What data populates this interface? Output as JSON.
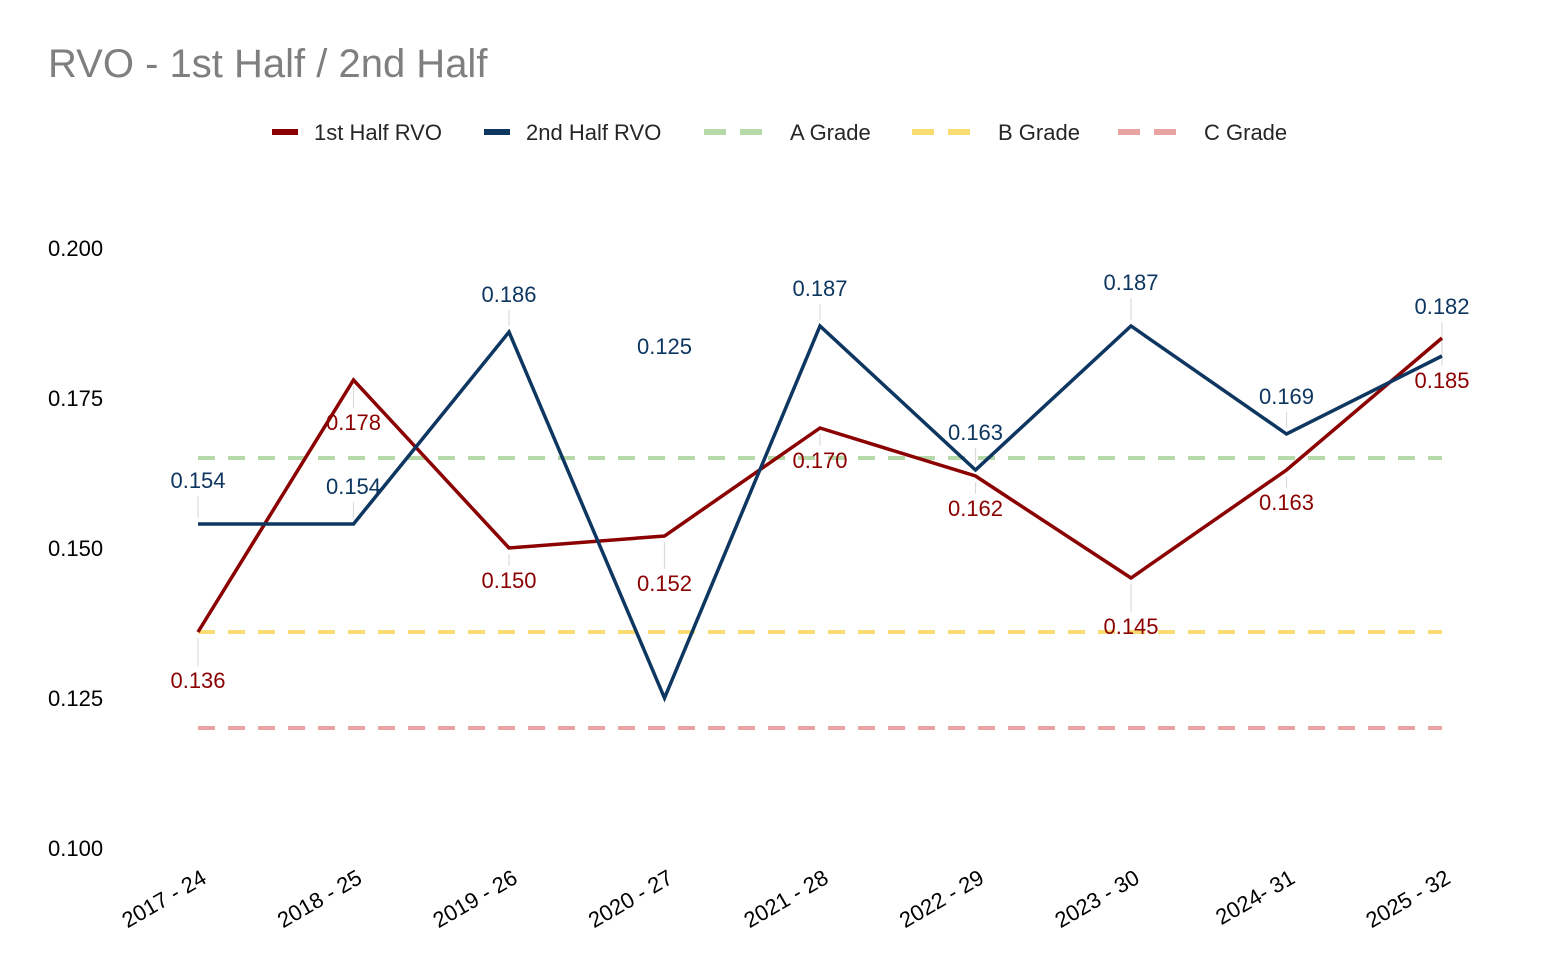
{
  "chart_data": {
    "type": "line",
    "title": "RVO - 1st Half / 2nd Half",
    "xlabel": "",
    "ylabel": "",
    "ylim": [
      0.1,
      0.2
    ],
    "yticks": [
      "0.100",
      "0.125",
      "0.150",
      "0.175",
      "0.200"
    ],
    "grid": false,
    "legend_position": "top-center",
    "categories": [
      "2017 - 24",
      "2018 - 25",
      "2019 - 26",
      "2020 - 27",
      "2021 - 28",
      "2022 - 29",
      "2023 - 30",
      "2024- 31",
      "2025 - 32"
    ],
    "series": [
      {
        "name": "1st Half RVO",
        "color": "#8b0000",
        "style": "solid",
        "values": [
          0.136,
          0.178,
          0.15,
          0.152,
          0.17,
          0.162,
          0.145,
          0.163,
          0.185
        ],
        "labels": [
          "0.136",
          "0.178",
          "0.150",
          "0.152",
          "0.170",
          "0.162",
          "0.145",
          "0.163",
          "0.185"
        ]
      },
      {
        "name": "2nd Half RVO",
        "color": "#0d3660",
        "style": "solid",
        "values": [
          0.154,
          0.154,
          0.186,
          0.125,
          0.187,
          0.163,
          0.187,
          0.169,
          0.182
        ],
        "labels": [
          "0.154",
          "0.154",
          "0.186",
          "0.125",
          "0.187",
          "0.163",
          "0.187",
          "0.169",
          "0.182"
        ]
      }
    ],
    "reference_lines": [
      {
        "name": "A Grade",
        "value": 0.165,
        "color": "#b5d9a8",
        "style": "dashed"
      },
      {
        "name": "B Grade",
        "value": 0.136,
        "color": "#f9dd73",
        "style": "dashed"
      },
      {
        "name": "C Grade",
        "value": 0.12,
        "color": "#e9a3a3",
        "style": "dashed"
      }
    ]
  }
}
